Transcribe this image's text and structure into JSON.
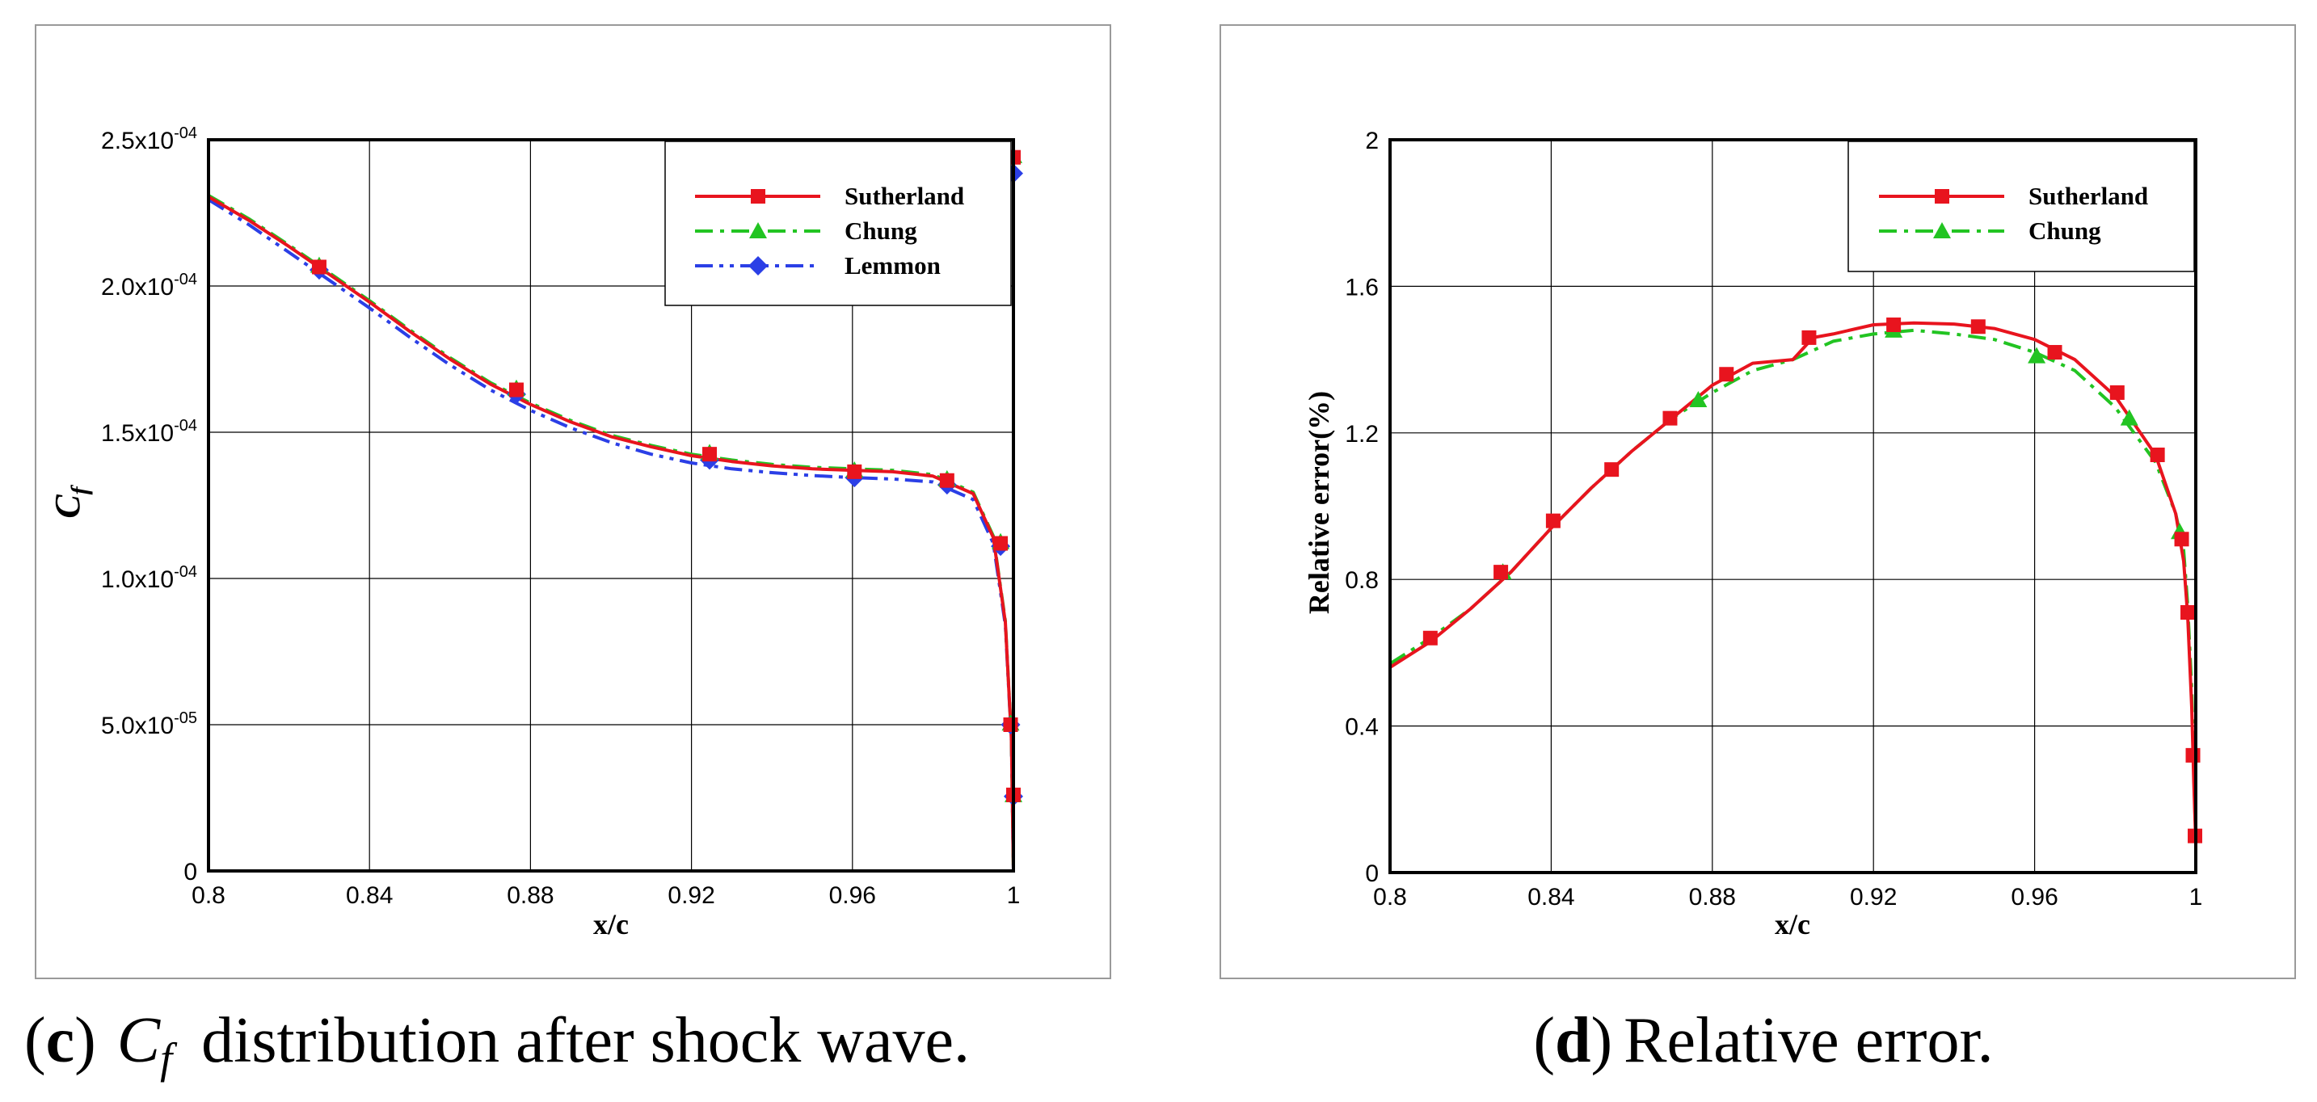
{
  "chart_data": [
    {
      "type": "line",
      "panel": "c",
      "caption": {
        "letter": "c",
        "open": "(",
        "close": ")",
        "symbol": "C",
        "subscript": "f",
        "text": "distribution after shock wave."
      },
      "xlabel": "x/c",
      "ylabel": {
        "symbol": "C",
        "subscript": "f"
      },
      "xlim": [
        0.8,
        1.0
      ],
      "ylim": [
        0,
        0.00025
      ],
      "xticks": [
        {
          "value": 0.8,
          "label": "0.8"
        },
        {
          "value": 0.84,
          "label": "0.84"
        },
        {
          "value": 0.88,
          "label": "0.88"
        },
        {
          "value": 0.92,
          "label": "0.92"
        },
        {
          "value": 0.96,
          "label": "0.96"
        },
        {
          "value": 1.0,
          "label": "1"
        }
      ],
      "yticks": [
        {
          "value": 0,
          "label": "0"
        },
        {
          "value": 5e-05,
          "label": "5.0x10",
          "exp": "-05"
        },
        {
          "value": 0.0001,
          "label": "1.0x10",
          "exp": "-04"
        },
        {
          "value": 0.00015,
          "label": "1.5x10",
          "exp": "-04"
        },
        {
          "value": 0.0002,
          "label": "2.0x10",
          "exp": "-04"
        },
        {
          "value": 0.00025,
          "label": "2.5x10",
          "exp": "-04"
        }
      ],
      "legend_position": "top-right",
      "series": [
        {
          "name": "Sutherland",
          "color": "#e8141e",
          "dash": "solid",
          "marker": "square",
          "x": [
            0.8,
            0.81,
            0.82,
            0.83,
            0.84,
            0.85,
            0.86,
            0.87,
            0.88,
            0.89,
            0.9,
            0.91,
            0.92,
            0.93,
            0.94,
            0.95,
            0.96,
            0.97,
            0.98,
            0.99,
            0.995,
            0.998,
            0.9995,
            1.0
          ],
          "y": [
            0.0002305,
            0.0002225,
            0.0002135,
            0.000204,
            0.0001945,
            0.0001845,
            0.000175,
            0.0001665,
            0.0001595,
            0.0001535,
            0.0001485,
            0.000145,
            0.000142,
            0.00014,
            0.0001385,
            0.0001375,
            0.000137,
            0.0001365,
            0.000135,
            0.000129,
            0.000114,
            8.5e-05,
            4.5e-05,
            0.0
          ],
          "markers_x": [
            0.8275,
            0.8765,
            0.9245,
            0.9605,
            0.9835,
            0.9968,
            0.9993,
            1.0,
            1.0
          ],
          "markers_y": [
            0.0002065,
            0.0001645,
            0.0001425,
            0.0001365,
            0.0001335,
            0.000112,
            5e-05,
            2.6e-05,
            0.000244
          ]
        },
        {
          "name": "Chung",
          "color": "#22c422",
          "dash": "dashdot",
          "marker": "triangle",
          "x": [
            0.8,
            0.81,
            0.82,
            0.83,
            0.84,
            0.85,
            0.86,
            0.87,
            0.88,
            0.89,
            0.9,
            0.91,
            0.92,
            0.93,
            0.94,
            0.95,
            0.96,
            0.97,
            0.98,
            0.99,
            0.995,
            0.998,
            0.9995,
            1.0
          ],
          "y": [
            0.000231,
            0.000223,
            0.000214,
            0.0002045,
            0.000195,
            0.000185,
            0.0001755,
            0.000167,
            0.00016,
            0.000154,
            0.000149,
            0.0001455,
            0.0001425,
            0.0001405,
            0.000139,
            0.000138,
            0.0001375,
            0.000137,
            0.0001355,
            0.0001295,
            0.0001145,
            8.55e-05,
            4.55e-05,
            0.0
          ],
          "markers_x": [
            0.8275,
            0.8765,
            0.9245,
            0.9605,
            0.9835,
            0.9968,
            0.9993,
            1.0,
            1.0
          ],
          "markers_y": [
            0.000207,
            0.000165,
            0.000143,
            0.000137,
            0.000134,
            0.0001125,
            5.05e-05,
            2.6e-05,
            0.0002445
          ]
        },
        {
          "name": "Lemmon",
          "color": "#2b3fe6",
          "dash": "dashdotdot",
          "marker": "diamond",
          "x": [
            0.8,
            0.81,
            0.82,
            0.83,
            0.84,
            0.85,
            0.86,
            0.87,
            0.88,
            0.89,
            0.9,
            0.91,
            0.92,
            0.93,
            0.94,
            0.95,
            0.96,
            0.97,
            0.98,
            0.99,
            0.995,
            0.998,
            0.9995,
            1.0
          ],
          "y": [
            0.0002295,
            0.000221,
            0.0002115,
            0.000202,
            0.0001925,
            0.0001825,
            0.000173,
            0.0001645,
            0.0001575,
            0.0001515,
            0.0001465,
            0.0001425,
            0.0001395,
            0.0001375,
            0.0001362,
            0.0001352,
            0.0001345,
            0.000134,
            0.000133,
            0.000127,
            0.000112,
            8.4e-05,
            4.45e-05,
            0.0
          ],
          "markers_x": [
            0.8275,
            0.8765,
            0.9245,
            0.9605,
            0.9835,
            0.9968,
            0.9993,
            1.0,
            1.0
          ],
          "markers_y": [
            0.0002055,
            0.000163,
            0.0001405,
            0.0001345,
            0.000132,
            0.000111,
            5e-05,
            2.55e-05,
            0.0002385
          ]
        }
      ]
    },
    {
      "type": "line",
      "panel": "d",
      "caption": {
        "letter": "d",
        "open": "(",
        "close": ")",
        "text": "Relative error."
      },
      "xlabel": "x/c",
      "ylabel": "Relative error(%)",
      "xlim": [
        0.8,
        1.0
      ],
      "ylim": [
        0,
        2
      ],
      "xticks": [
        {
          "value": 0.8,
          "label": "0.8"
        },
        {
          "value": 0.84,
          "label": "0.84"
        },
        {
          "value": 0.88,
          "label": "0.88"
        },
        {
          "value": 0.92,
          "label": "0.92"
        },
        {
          "value": 0.96,
          "label": "0.96"
        },
        {
          "value": 1.0,
          "label": "1"
        }
      ],
      "yticks": [
        {
          "value": 0,
          "label": "0"
        },
        {
          "value": 0.4,
          "label": "0.4"
        },
        {
          "value": 0.8,
          "label": "0.8"
        },
        {
          "value": 1.2,
          "label": "1.2"
        },
        {
          "value": 1.6,
          "label": "1.6"
        },
        {
          "value": 2.0,
          "label": "2"
        }
      ],
      "legend_position": "top-right",
      "series": [
        {
          "name": "Sutherland",
          "color": "#e8141e",
          "dash": "solid",
          "marker": "square",
          "x": [
            0.8,
            0.81,
            0.82,
            0.83,
            0.84,
            0.85,
            0.86,
            0.87,
            0.88,
            0.89,
            0.9,
            0.905,
            0.91,
            0.92,
            0.93,
            0.94,
            0.95,
            0.96,
            0.97,
            0.98,
            0.99,
            0.995,
            0.997,
            0.998,
            0.999,
            0.9995,
            1.0
          ],
          "y": [
            0.56,
            0.63,
            0.72,
            0.82,
            0.94,
            1.05,
            1.15,
            1.24,
            1.33,
            1.39,
            1.4,
            1.46,
            1.47,
            1.495,
            1.5,
            1.497,
            1.485,
            1.455,
            1.4,
            1.3,
            1.14,
            0.98,
            0.85,
            0.7,
            0.45,
            0.25,
            0.08
          ],
          "markers_x": [
            0.81,
            0.8275,
            0.8405,
            0.855,
            0.8695,
            0.8835,
            0.904,
            0.925,
            0.946,
            0.965,
            0.9805,
            0.9905,
            0.9965,
            0.998,
            0.9993,
            0.9998
          ],
          "markers_y": [
            0.64,
            0.82,
            0.96,
            1.1,
            1.24,
            1.36,
            1.46,
            1.495,
            1.49,
            1.42,
            1.31,
            1.14,
            0.91,
            0.71,
            0.32,
            0.1
          ]
        },
        {
          "name": "Chung",
          "color": "#22c422",
          "dash": "dashdot",
          "marker": "triangle",
          "x": [
            0.8,
            0.81,
            0.82,
            0.83,
            0.84,
            0.85,
            0.86,
            0.87,
            0.88,
            0.89,
            0.9,
            0.91,
            0.92,
            0.93,
            0.94,
            0.95,
            0.96,
            0.97,
            0.98,
            0.99,
            0.995,
            0.997,
            0.998,
            0.999,
            0.9995,
            1.0
          ],
          "y": [
            0.57,
            0.64,
            0.72,
            0.82,
            0.94,
            1.05,
            1.15,
            1.24,
            1.31,
            1.37,
            1.4,
            1.45,
            1.47,
            1.48,
            1.47,
            1.455,
            1.42,
            1.37,
            1.27,
            1.12,
            0.98,
            0.88,
            0.73,
            0.5,
            0.28,
            0.08
          ],
          "markers_x": [
            0.828,
            0.8765,
            0.925,
            0.9605,
            0.9835,
            0.996
          ],
          "markers_y": [
            0.82,
            1.29,
            1.48,
            1.41,
            1.24,
            0.93
          ]
        }
      ]
    }
  ]
}
